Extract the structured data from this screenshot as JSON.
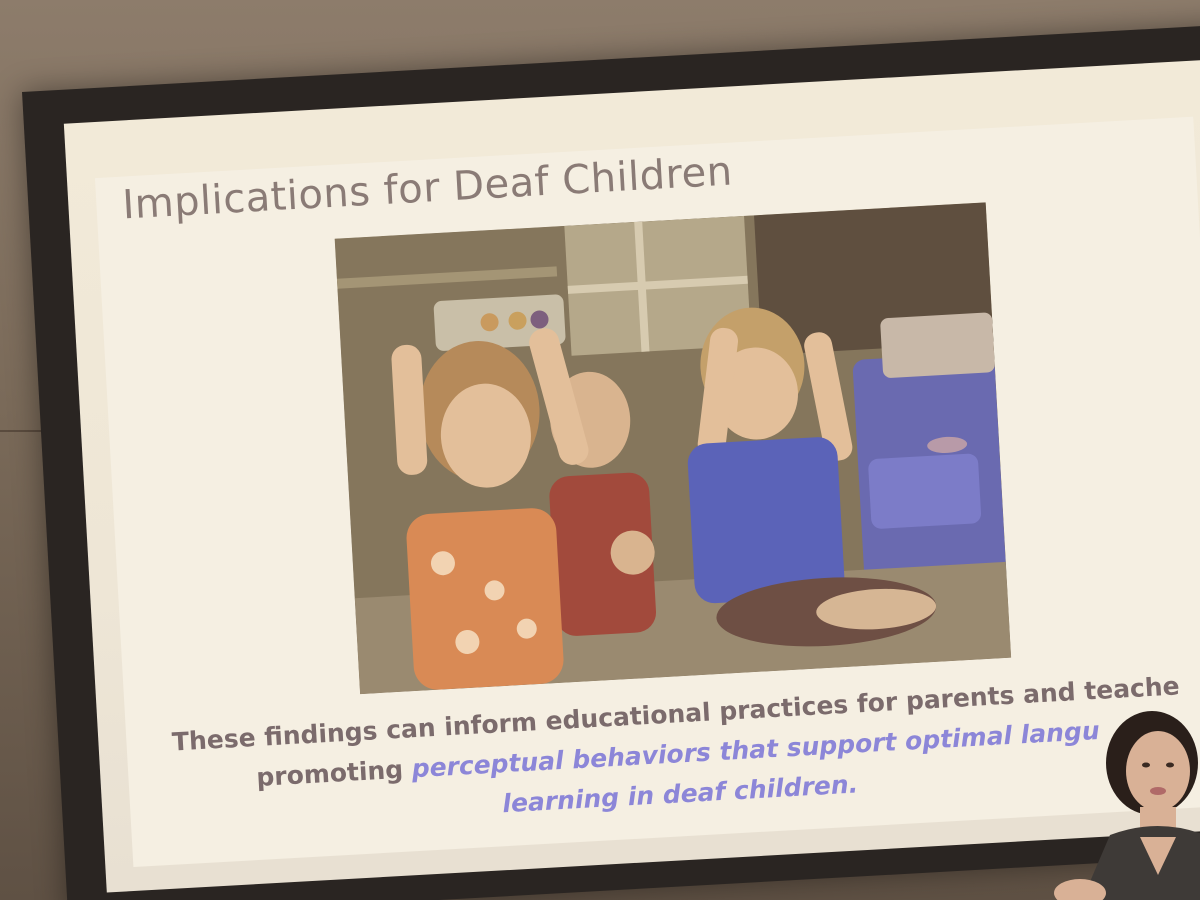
{
  "slide": {
    "title": "Implications for Deaf Children",
    "caption_line1": "These findings can inform educational practices for parents and teache",
    "caption_line2_prefix": "promoting ",
    "caption_line2_emphasis": "perceptual behaviors that support optimal langu",
    "caption_line3_emphasis": "learning in deaf children.",
    "photo_alt": "children-signing-photo"
  },
  "colors": {
    "title": "#8a7b76",
    "caption": "#7b6b6c",
    "emphasis": "#8c86d8",
    "slide_bg": "#f5efe2",
    "screen_frame": "#2a2522"
  }
}
